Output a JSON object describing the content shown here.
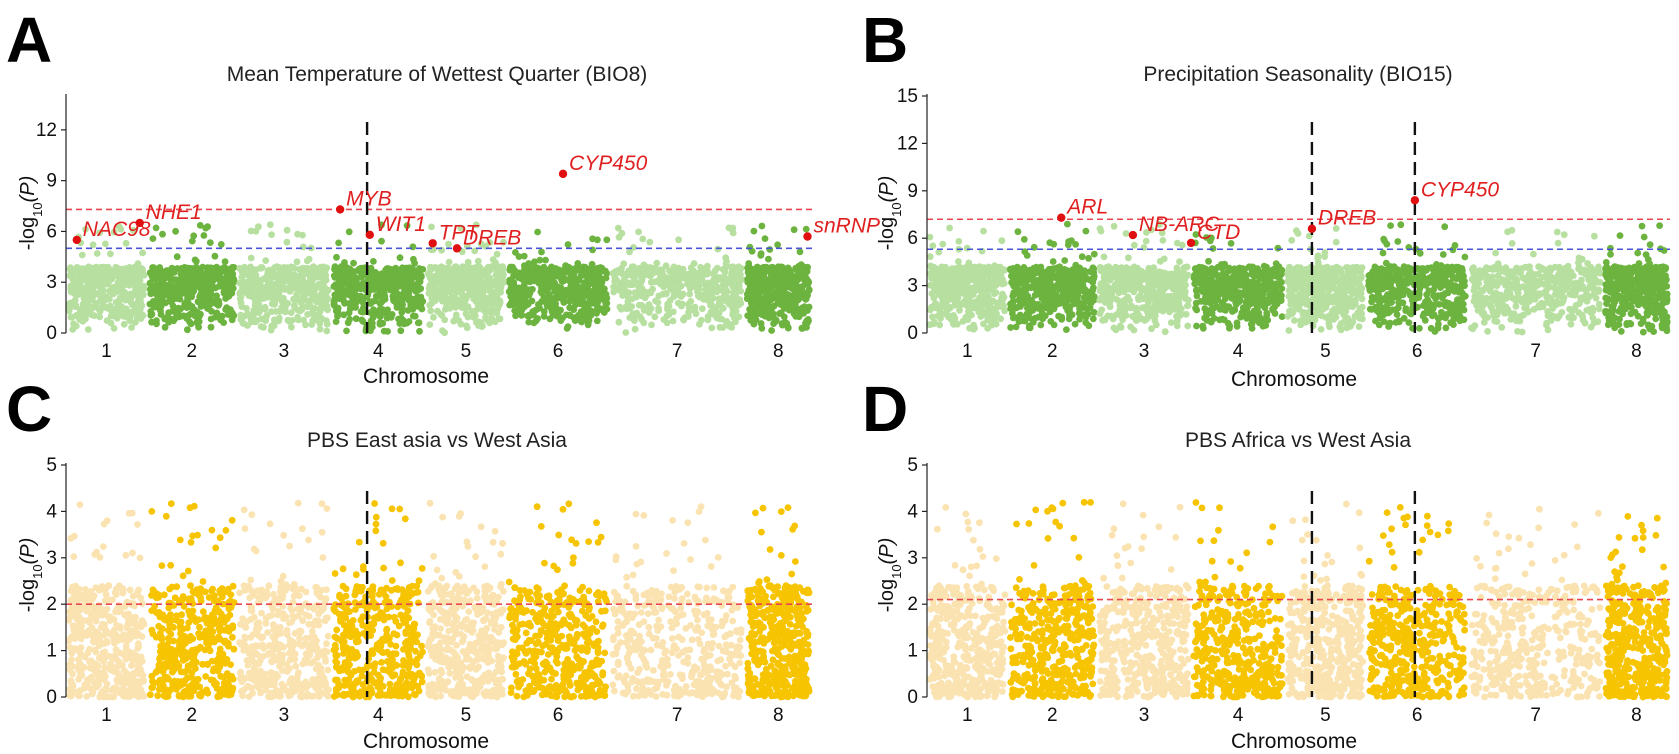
{
  "colors": {
    "gwas_light": "#b7e0a0",
    "gwas_dark": "#6cb33f",
    "pbs_light": "#fae3b0",
    "pbs_dark": "#f6c400",
    "threshold_red": "#e8474f",
    "threshold_blue": "#4a54d8",
    "highlight": "#e01010"
  },
  "chart_data": [
    {
      "panel": "A",
      "type": "scatter",
      "subtype": "manhattan",
      "title": "Mean Temperature of Wettest Quarter (BIO8)",
      "xlabel": "Chromosome",
      "ylabel_prefix": "-log",
      "ylabel_sub": "10",
      "ylabel_suffix": "(P)",
      "ylim": [
        0,
        14
      ],
      "yticks": [
        0,
        3,
        6,
        9,
        12
      ],
      "chromosomes": [
        "1",
        "2",
        "3",
        "4",
        "5",
        "6",
        "7",
        "8"
      ],
      "thresholds": [
        {
          "value": 7.3,
          "color": "red"
        },
        {
          "value": 5.0,
          "color": "blue"
        }
      ],
      "vlines": [
        3.35
      ],
      "genes": [
        {
          "label": "NAC98",
          "x": 0.12,
          "y": 5.5
        },
        {
          "label": "NHE1",
          "x": 0.82,
          "y": 6.5
        },
        {
          "label": "MYB",
          "x": 3.05,
          "y": 7.3
        },
        {
          "label": "WIT1",
          "x": 3.38,
          "y": 5.8
        },
        {
          "label": "TPT",
          "x": 4.08,
          "y": 5.3
        },
        {
          "label": "DREB",
          "x": 4.35,
          "y": 5.0
        },
        {
          "label": "CYP450",
          "x": 5.53,
          "y": 9.4
        },
        {
          "label": "snRNP",
          "x": 8.25,
          "y": 5.7
        }
      ]
    },
    {
      "panel": "B",
      "type": "scatter",
      "subtype": "manhattan",
      "title": "Precipitation Seasonality (BIO15)",
      "xlabel": "Chromosome",
      "ylabel_prefix": "-log",
      "ylabel_sub": "10",
      "ylabel_suffix": "(P)",
      "ylim": [
        0,
        15
      ],
      "yticks": [
        0,
        3,
        6,
        9,
        12,
        15
      ],
      "chromosomes": [
        "1",
        "2",
        "3",
        "4",
        "5",
        "6",
        "7",
        "8"
      ],
      "thresholds": [
        {
          "value": 7.2,
          "color": "red"
        },
        {
          "value": 5.3,
          "color": "blue"
        }
      ],
      "vlines": [
        4.3,
        5.45
      ],
      "genes": [
        {
          "label": "ARL",
          "x": 1.5,
          "y": 7.3
        },
        {
          "label": "NB-ARC",
          "x": 2.3,
          "y": 6.2
        },
        {
          "label": "CTD",
          "x": 2.95,
          "y": 5.7
        },
        {
          "label": "DREB",
          "x": 4.3,
          "y": 6.6
        },
        {
          "label": "CYP450",
          "x": 5.45,
          "y": 8.4
        }
      ]
    },
    {
      "panel": "C",
      "type": "scatter",
      "subtype": "manhattan",
      "title": "PBS East asia vs West Asia",
      "xlabel": "Chromosome",
      "ylabel_prefix": "-log",
      "ylabel_sub": "10",
      "ylabel_suffix": "(P)",
      "ylim": [
        0,
        5
      ],
      "yticks": [
        0,
        1,
        2,
        3,
        4,
        5
      ],
      "chromosomes": [
        "1",
        "2",
        "3",
        "4",
        "5",
        "6",
        "7",
        "8"
      ],
      "thresholds": [
        {
          "value": 2.0,
          "color": "red"
        }
      ],
      "vlines": [
        3.35
      ],
      "genes": []
    },
    {
      "panel": "D",
      "type": "scatter",
      "subtype": "manhattan",
      "title": "PBS Africa vs West Asia",
      "xlabel": "Chromosome",
      "ylabel_prefix": "-log",
      "ylabel_sub": "10",
      "ylabel_suffix": "(P)",
      "ylim": [
        0,
        5
      ],
      "yticks": [
        0,
        1,
        2,
        3,
        4,
        5
      ],
      "chromosomes": [
        "1",
        "2",
        "3",
        "4",
        "5",
        "6",
        "7",
        "8"
      ],
      "thresholds": [
        {
          "value": 2.1,
          "color": "red"
        }
      ],
      "vlines": [
        4.3,
        5.45
      ],
      "genes": []
    }
  ]
}
